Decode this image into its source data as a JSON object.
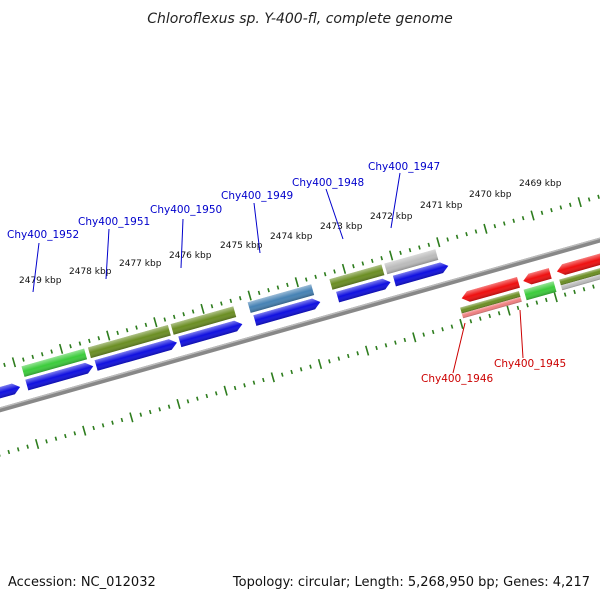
{
  "title": "Chloroflexus sp. Y-400-fl, complete genome",
  "footer": {
    "accession": "Accession: NC_012032",
    "info": "Topology: circular; Length: 5,268,950 bp; Genes: 4,217"
  },
  "ruler": {
    "ticks": [
      "2479 kbp",
      "2478 kbp",
      "2477 kbp",
      "2476 kbp",
      "2475 kbp",
      "2474 kbp",
      "2473 kbp",
      "2472 kbp",
      "2471 kbp",
      "2470 kbp",
      "2469 kbp"
    ]
  },
  "colors": {
    "forward_label": "#0000cc",
    "reverse_label": "#cc0000",
    "tick": "#2e7d1e",
    "backbone": "#888888",
    "blue": "#1010e0",
    "green": "#3ccc3c",
    "olive": "#6b8e23",
    "steel": "#4682b4",
    "grey": "#bbbbbb",
    "red": "#ee1010",
    "pink": "#f08080"
  },
  "gene_labels": {
    "forward": [
      "Chy400_1952",
      "Chy400_1951",
      "Chy400_1950",
      "Chy400_1949",
      "Chy400_1948",
      "Chy400_1947"
    ],
    "reverse": [
      "Chy400_1946",
      "Chy400_1945"
    ]
  }
}
